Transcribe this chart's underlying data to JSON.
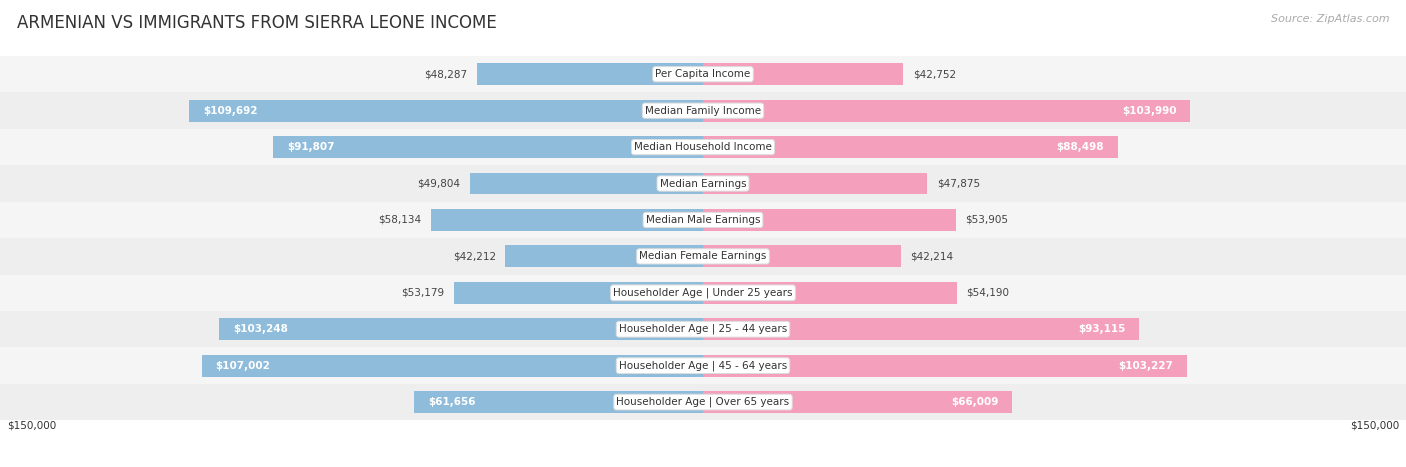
{
  "title": "ARMENIAN VS IMMIGRANTS FROM SIERRA LEONE INCOME",
  "source": "Source: ZipAtlas.com",
  "categories": [
    "Per Capita Income",
    "Median Family Income",
    "Median Household Income",
    "Median Earnings",
    "Median Male Earnings",
    "Median Female Earnings",
    "Householder Age | Under 25 years",
    "Householder Age | 25 - 44 years",
    "Householder Age | 45 - 64 years",
    "Householder Age | Over 65 years"
  ],
  "armenian_values": [
    48287,
    109692,
    91807,
    49804,
    58134,
    42212,
    53179,
    103248,
    107002,
    61656
  ],
  "sierra_leone_values": [
    42752,
    103990,
    88498,
    47875,
    53905,
    42214,
    54190,
    93115,
    103227,
    66009
  ],
  "armenian_labels": [
    "$48,287",
    "$109,692",
    "$91,807",
    "$49,804",
    "$58,134",
    "$42,212",
    "$53,179",
    "$103,248",
    "$107,002",
    "$61,656"
  ],
  "sierra_leone_labels": [
    "$42,752",
    "$103,990",
    "$88,498",
    "$47,875",
    "$53,905",
    "$42,214",
    "$54,190",
    "$93,115",
    "$103,227",
    "$66,009"
  ],
  "armenian_inside_threshold": 60000,
  "sierra_leone_inside_threshold": 60000,
  "max_value": 150000,
  "armenian_color": "#8fbcdb",
  "sierra_leone_color": "#f4a0bc",
  "row_bg_even": "#f5f5f5",
  "row_bg_odd": "#eeeeee",
  "background_color": "#ffffff",
  "bar_height": 0.6,
  "xlabel_left": "$150,000",
  "xlabel_right": "$150,000",
  "title_fontsize": 12,
  "label_fontsize": 7.5,
  "source_fontsize": 8,
  "legend_fontsize": 9
}
